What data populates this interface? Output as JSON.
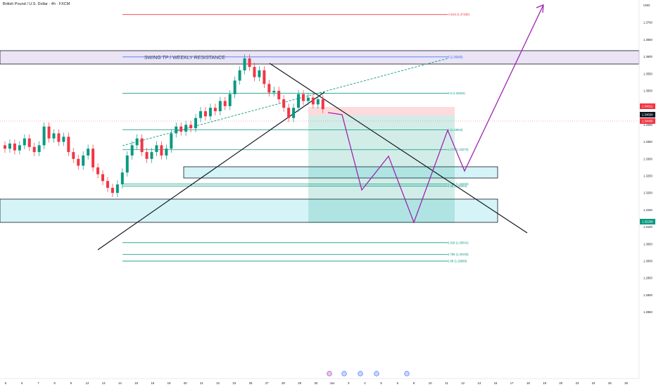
{
  "header": {
    "title": "British Pound / U.S. Dollar · 4h · FXCM"
  },
  "chart_data": {
    "type": "candlestick",
    "symbol": "British Pound / U.S. Dollar",
    "timeframe": "4h",
    "source": "FXCM",
    "currency": "USD",
    "ylim": [
      1.283,
      1.381
    ],
    "y_ticks": [
      1.37,
      1.365,
      1.36,
      1.355,
      1.35,
      1.345,
      1.34,
      1.335,
      1.33,
      1.325,
      1.32,
      1.315,
      1.31,
      1.305,
      1.3,
      1.295,
      1.29,
      1.285
    ],
    "x_ticks": [
      "5",
      "6",
      "7",
      "8",
      "9",
      "12",
      "13",
      "14",
      "15",
      "16",
      "19",
      "20",
      "21",
      "22",
      "23",
      "26",
      "27",
      "28",
      "29",
      "30",
      "Jun",
      "3",
      "4",
      "5",
      "6",
      "9",
      "10",
      "11",
      "12",
      "13",
      "16",
      "17",
      "18",
      "19",
      "20",
      "23",
      "24",
      "25",
      "26"
    ],
    "price_labels": [
      {
        "value": "1.34811",
        "color": "#f23645"
      },
      {
        "value": "1.34609",
        "color": "#131722"
      },
      {
        "value": "1.34456",
        "color": "#f23645"
      },
      {
        "value": "1.32288",
        "color": "#089981"
      }
    ],
    "annotation": "SWING TP / WEEKLY RESISTANCE",
    "fib_levels": [
      {
        "label": "-0.618 (1.37238)",
        "value": 1.37238,
        "color": "#f23645"
      },
      {
        "label": "0 (1.35995)",
        "value": 1.35995,
        "color": "#2962ff"
      },
      {
        "label": "0.5 (1.34924)",
        "value": 1.34924,
        "color": "#089981"
      },
      {
        "label": "1 (1.33853)",
        "value": 1.33853,
        "color": "#089981"
      },
      {
        "label": "1.272 (1.33270)",
        "value": 1.3327,
        "color": "#089981"
      },
      {
        "label": "1.786 (1.32263)",
        "value": 1.32263,
        "color": "#089981"
      },
      {
        "label": "1.65 (1.32204)",
        "value": 1.32204,
        "color": "#089981"
      },
      {
        "label": "2.618 (1.30541)",
        "value": 1.30541,
        "color": "#089981"
      },
      {
        "label": "2.786 (1.30193)",
        "value": 1.30193,
        "color": "#089981"
      },
      {
        "label": "2.88 (1.29999)",
        "value": 1.29999,
        "color": "#089981"
      }
    ],
    "colors": {
      "up": "#089981",
      "down": "#f23645",
      "zone": "#b2ebf2",
      "projection": "#9c27b0",
      "resistance": "#d1c4e9"
    }
  }
}
